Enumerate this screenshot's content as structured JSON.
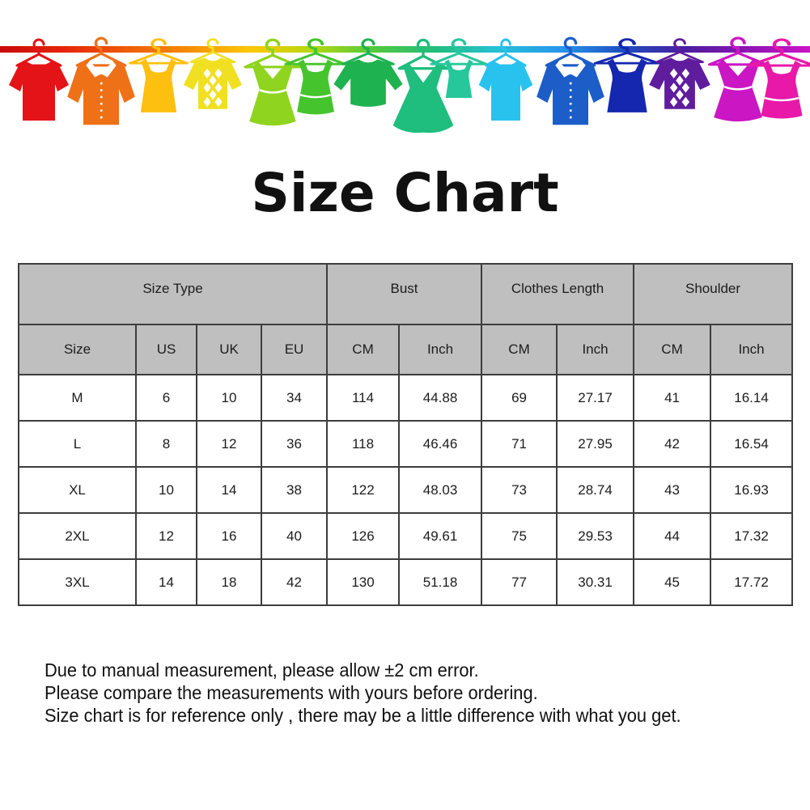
{
  "title": "Size Chart",
  "banner": {
    "description": "colorful clothes hanging on rainbow gradient clothesline",
    "rod_gradient": [
      "#c80a0a",
      "#e62309",
      "#ee5a05",
      "#f58c00",
      "#ffc800",
      "#b4d810",
      "#52c93c",
      "#23bd7d",
      "#26c0d8",
      "#2996ec",
      "#1d50c0",
      "#4a1da0",
      "#8c16b4",
      "#cc14c8"
    ],
    "garments": [
      {
        "name": "red-tshirt-icon",
        "type": "tshirt",
        "color": "#e41317"
      },
      {
        "name": "orange-shirt-icon",
        "type": "shirt",
        "color": "#ee7118"
      },
      {
        "name": "gold-tanktop-icon",
        "type": "tank",
        "color": "#fdc011"
      },
      {
        "name": "yellow-argyle-sweater-icon",
        "type": "sweater",
        "color": "#f0e021"
      },
      {
        "name": "yellowgreen-dress-icon",
        "type": "dress",
        "color": "#8fd41e"
      },
      {
        "name": "green-tank-dress-icon",
        "type": "tankdress",
        "color": "#46c42e"
      },
      {
        "name": "green-longsleeve-top-icon",
        "type": "longsleeve",
        "color": "#1eb250"
      },
      {
        "name": "teal-flared-dress-icon",
        "type": "bigdress",
        "color": "#1fbe7e"
      },
      {
        "name": "teal-small-tank-icon",
        "type": "smalltank",
        "color": "#27c79c"
      },
      {
        "name": "cyan-tshirt-icon",
        "type": "tshirt",
        "color": "#29c2ef"
      },
      {
        "name": "blue-shirt-icon",
        "type": "shirt",
        "color": "#1c5dc8"
      },
      {
        "name": "navy-tanktop-icon",
        "type": "tank",
        "color": "#1527ae"
      },
      {
        "name": "purple-argyle-sweater-icon",
        "type": "sweater",
        "color": "#5f1d9e"
      },
      {
        "name": "magenta-dress-icon",
        "type": "dress",
        "color": "#cb16c4"
      },
      {
        "name": "pink-tank-dress-icon",
        "type": "tankdress",
        "color": "#e818a8"
      }
    ]
  },
  "table": {
    "group_headers": [
      {
        "label": "Size Type",
        "colspan": 4
      },
      {
        "label": "Bust",
        "colspan": 2
      },
      {
        "label": "Clothes Length",
        "colspan": 2
      },
      {
        "label": "Shoulder",
        "colspan": 2
      }
    ],
    "sub_headers": [
      "Size",
      "US",
      "UK",
      "EU",
      "CM",
      "Inch",
      "CM",
      "Inch",
      "CM",
      "Inch"
    ],
    "rows": [
      [
        "M",
        "6",
        "10",
        "34",
        "114",
        "44.88",
        "69",
        "27.17",
        "41",
        "16.14"
      ],
      [
        "L",
        "8",
        "12",
        "36",
        "118",
        "46.46",
        "71",
        "27.95",
        "42",
        "16.54"
      ],
      [
        "XL",
        "10",
        "14",
        "38",
        "122",
        "48.03",
        "73",
        "28.74",
        "43",
        "16.93"
      ],
      [
        "2XL",
        "12",
        "16",
        "40",
        "126",
        "49.61",
        "75",
        "29.53",
        "44",
        "17.32"
      ],
      [
        "3XL",
        "14",
        "18",
        "42",
        "130",
        "51.18",
        "77",
        "30.31",
        "45",
        "17.72"
      ]
    ]
  },
  "notes": [
    "Due to manual measurement, please allow ±2 cm error.",
    "Please compare the measurements with yours before ordering.",
    "Size chart is for reference only , there may be a little difference with what you get."
  ],
  "colors": {
    "header_bg": "#bfbfbf",
    "table_border": "#3d3d3d",
    "text": "#1c1c1c"
  },
  "chart_data": {
    "type": "table",
    "title": "Size Chart",
    "column_groups": [
      {
        "label": "Size Type",
        "span": 4
      },
      {
        "label": "Bust",
        "span": 2
      },
      {
        "label": "Clothes Length",
        "span": 2
      },
      {
        "label": "Shoulder",
        "span": 2
      }
    ],
    "columns": [
      "Size",
      "US",
      "UK",
      "EU",
      "Bust CM",
      "Bust Inch",
      "Clothes Length CM",
      "Clothes Length Inch",
      "Shoulder CM",
      "Shoulder Inch"
    ],
    "rows": [
      [
        "M",
        6,
        10,
        34,
        114,
        44.88,
        69,
        27.17,
        41,
        16.14
      ],
      [
        "L",
        8,
        12,
        36,
        118,
        46.46,
        71,
        27.95,
        42,
        16.54
      ],
      [
        "XL",
        10,
        14,
        38,
        122,
        48.03,
        73,
        28.74,
        43,
        16.93
      ],
      [
        "2XL",
        12,
        16,
        40,
        126,
        49.61,
        75,
        29.53,
        44,
        17.32
      ],
      [
        "3XL",
        14,
        18,
        42,
        130,
        51.18,
        77,
        30.31,
        45,
        17.72
      ]
    ],
    "notes": "±2 cm manual-measurement error; chart for reference only"
  }
}
